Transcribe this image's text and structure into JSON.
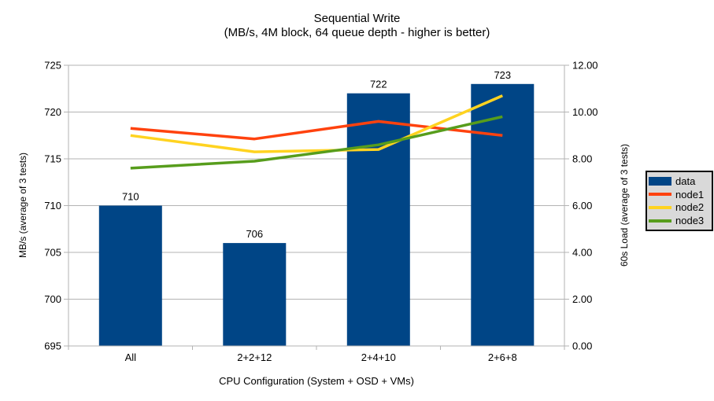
{
  "chart_data": {
    "type": "bar+line combo",
    "title": "Sequential Write",
    "subtitle": "(MB/s, 4M block, 64 queue depth - higher is better)",
    "xlabel": "CPU Configuration (System + OSD + VMs)",
    "categories": [
      "All",
      "2+2+12",
      "2+4+10",
      "2+6+8"
    ],
    "axes": {
      "left": {
        "label": "MB/s (average of 3 tests)",
        "min": 695,
        "max": 725,
        "step": 5,
        "decimals": 0
      },
      "right": {
        "label": "60s Load (average of 3 tests)",
        "min": 0,
        "max": 12,
        "step": 2,
        "decimals": 2
      }
    },
    "grid": "horizontal-only",
    "legend_position": "right",
    "series": [
      {
        "name": "data",
        "type": "bar",
        "axis": "left",
        "color": "#004586",
        "values": [
          710,
          706,
          722,
          723
        ],
        "labels": [
          "710",
          "706",
          "722",
          "723"
        ]
      },
      {
        "name": "node1",
        "type": "line",
        "axis": "right",
        "color": "#FF420E",
        "values": [
          9.3,
          8.85,
          9.6,
          9.0
        ]
      },
      {
        "name": "node2",
        "type": "line",
        "axis": "right",
        "color": "#FFD320",
        "values": [
          9.0,
          8.3,
          8.4,
          10.7
        ]
      },
      {
        "name": "node3",
        "type": "line",
        "axis": "right",
        "color": "#579D1C",
        "values": [
          7.6,
          7.9,
          8.6,
          9.8
        ]
      }
    ],
    "colors": {
      "background": "#ffffff",
      "gridline": "#b3b3b3",
      "axis": "#b3b3b3",
      "text": "#000000",
      "legend_bg": "#d9d9d9",
      "legend_border": "#000000"
    }
  }
}
